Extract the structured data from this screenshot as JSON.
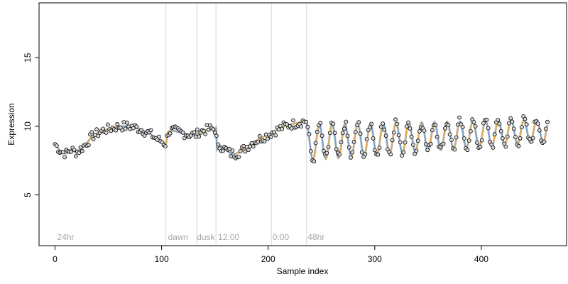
{
  "chart_data": {
    "type": "scatter",
    "title": "",
    "xlabel": "Sample index",
    "ylabel": "Expression",
    "xlim": [
      -15,
      480
    ],
    "ylim": [
      1.3,
      19.0
    ],
    "x_ticks": [
      0,
      100,
      200,
      300,
      400
    ],
    "y_ticks": [
      5,
      10,
      15
    ],
    "grid": false,
    "legend": "none",
    "colors": {
      "points_fill": "#d9d9d9",
      "points_edge": "#000000",
      "fit_line": "#a6a6a6",
      "segment_rise": "#f0a830",
      "segment_fall": "#6b9bd1",
      "vline": "#d9d9d9",
      "annotation": "#a6a6a6"
    },
    "vlines": [
      104,
      133,
      151,
      203,
      236
    ],
    "annotations": [
      {
        "x": 2,
        "label": "24hr"
      },
      {
        "x": 106,
        "label": "dawn"
      },
      {
        "x": 133,
        "label": "dusk"
      },
      {
        "x": 153,
        "label": "12:00"
      },
      {
        "x": 204,
        "label": "0:00"
      },
      {
        "x": 237,
        "label": "48hr"
      }
    ],
    "anchors": [
      [
        0,
        8.7
      ],
      [
        5,
        8.2
      ],
      [
        10,
        8.0
      ],
      [
        15,
        8.3
      ],
      [
        20,
        8.1
      ],
      [
        25,
        8.4
      ],
      [
        30,
        8.8
      ],
      [
        35,
        9.3
      ],
      [
        40,
        9.5
      ],
      [
        45,
        9.7
      ],
      [
        50,
        9.8
      ],
      [
        55,
        9.9
      ],
      [
        60,
        10.0
      ],
      [
        65,
        10.0
      ],
      [
        70,
        10.0
      ],
      [
        75,
        9.9
      ],
      [
        80,
        9.8
      ],
      [
        85,
        9.6
      ],
      [
        90,
        9.4
      ],
      [
        95,
        9.1
      ],
      [
        100,
        8.9
      ],
      [
        104,
        8.7
      ],
      [
        106,
        9.6
      ],
      [
        110,
        9.7
      ],
      [
        115,
        9.6
      ],
      [
        120,
        9.5
      ],
      [
        125,
        9.4
      ],
      [
        130,
        9.4
      ],
      [
        133,
        9.4
      ],
      [
        135,
        9.6
      ],
      [
        140,
        9.7
      ],
      [
        145,
        9.8
      ],
      [
        150,
        9.8
      ],
      [
        151,
        9.9
      ],
      [
        152,
        8.3
      ],
      [
        155,
        8.6
      ],
      [
        160,
        8.3
      ],
      [
        165,
        8.0
      ],
      [
        170,
        8.0
      ],
      [
        175,
        8.2
      ],
      [
        180,
        8.5
      ],
      [
        185,
        8.8
      ],
      [
        190,
        9.0
      ],
      [
        195,
        9.2
      ],
      [
        200,
        9.4
      ],
      [
        205,
        9.6
      ],
      [
        210,
        9.8
      ],
      [
        215,
        10.0
      ],
      [
        220,
        10.1
      ],
      [
        225,
        10.2
      ],
      [
        230,
        10.3
      ],
      [
        235,
        10.4
      ]
    ],
    "wave": {
      "x_start": 236,
      "x_end": 462,
      "period": 12,
      "base_start": 8.8,
      "base_end": 9.7,
      "amp_start": 1.3,
      "amp_end": 0.8
    },
    "point_spacing": 1.5,
    "point_jitter": 0.35,
    "x_range": [
      0,
      462
    ]
  }
}
